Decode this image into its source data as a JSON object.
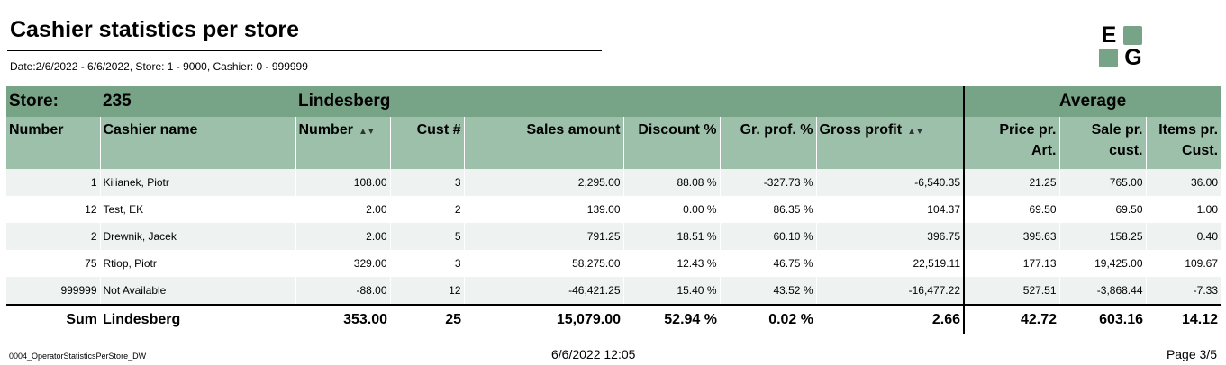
{
  "report": {
    "title": "Cashier statistics per store",
    "params": "Date:2/6/2022 - 6/6/2022, Store: 1 - 9000, Cashier: 0 - 999999",
    "logo_letters": [
      "E",
      "G"
    ]
  },
  "store_row": {
    "label": "Store:",
    "number": "235",
    "name": "Lindesberg",
    "average_label": "Average"
  },
  "columns": {
    "number": "Number",
    "cashier_name": "Cashier name",
    "qty": "Number",
    "cust": "Cust #",
    "sales": "Sales amount",
    "discount": "Discount %",
    "gr_prof": "Gr. prof. %",
    "gross_profit": "Gross profit",
    "price_pr_art_1": "Price pr.",
    "price_pr_art_2": "Art.",
    "sale_pr_cust_1": "Sale pr.",
    "sale_pr_cust_2": "cust.",
    "items_pr_cust_1": "Items pr.",
    "items_pr_cust_2": "Cust."
  },
  "rows": [
    {
      "number": "1",
      "name": "Kilianek, Piotr",
      "qty": "108.00",
      "cust": "3",
      "sales": "2,295.00",
      "discount": "88.08 %",
      "gr_prof": "-327.73 %",
      "gross_profit": "-6,540.35",
      "price_art": "21.25",
      "sale_cust": "765.00",
      "items_cust": "36.00"
    },
    {
      "number": "12",
      "name": "Test, EK",
      "qty": "2.00",
      "cust": "2",
      "sales": "139.00",
      "discount": "0.00 %",
      "gr_prof": "86.35 %",
      "gross_profit": "104.37",
      "price_art": "69.50",
      "sale_cust": "69.50",
      "items_cust": "1.00"
    },
    {
      "number": "2",
      "name": "Drewnik, Jacek",
      "qty": "2.00",
      "cust": "5",
      "sales": "791.25",
      "discount": "18.51 %",
      "gr_prof": "60.10 %",
      "gross_profit": "396.75",
      "price_art": "395.63",
      "sale_cust": "158.25",
      "items_cust": "0.40"
    },
    {
      "number": "75",
      "name": "Rtiop, Piotr",
      "qty": "329.00",
      "cust": "3",
      "sales": "58,275.00",
      "discount": "12.43 %",
      "gr_prof": "46.75 %",
      "gross_profit": "22,519.11",
      "price_art": "177.13",
      "sale_cust": "19,425.00",
      "items_cust": "109.67"
    },
    {
      "number": "999999",
      "name": "Not Available",
      "qty": "-88.00",
      "cust": "12",
      "sales": "-46,421.25",
      "discount": "15.40 %",
      "gr_prof": "43.52 %",
      "gross_profit": "-16,477.22",
      "price_art": "527.51",
      "sale_cust": "-3,868.44",
      "items_cust": "-7.33"
    }
  ],
  "sum": {
    "label": "Sum",
    "name": "Lindesberg",
    "qty": "353.00",
    "cust": "25",
    "sales": "15,079.00",
    "discount": "52.94 %",
    "gr_prof": "0.02 %",
    "gross_profit": "2.66",
    "price_art": "42.72",
    "sale_cust": "603.16",
    "items_cust": "14.12"
  },
  "footer": {
    "report_id": "0004_OperatorStatisticsPerStore_DW",
    "printed": "6/6/2022 12:05",
    "page": "Page 3/5"
  },
  "colors": {
    "header_dark": "#77a387",
    "header_light": "#9cc0aa",
    "alt_row": "#eef2f0"
  },
  "icons": {
    "sort": "sort-arrows-icon"
  }
}
